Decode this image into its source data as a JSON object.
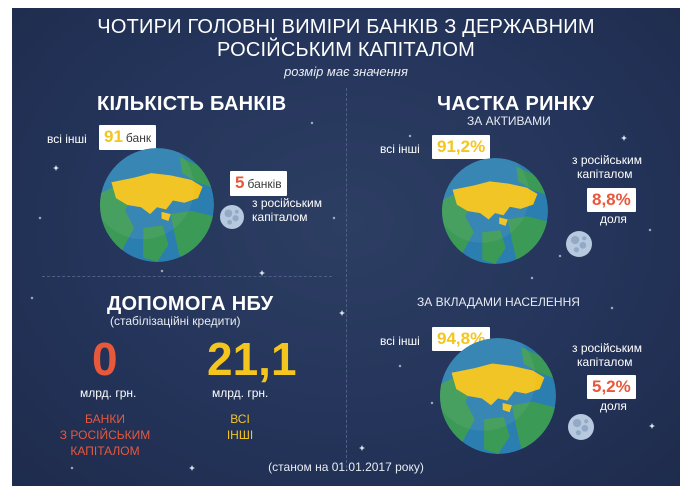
{
  "title": {
    "line1": "ЧОТИРИ ГОЛОВНІ ВИМІРИ БАНКІВ З ДЕРЖАВНИМ",
    "line2": "РОСІЙСЬКИМ КАПІТАЛОМ",
    "subtitle": "розмір має значення"
  },
  "bank_count": {
    "heading": "КІЛЬКІСТЬ БАНКІВ",
    "others_label": "всі інші",
    "others_value": "91",
    "others_unit": "банк",
    "russian_value": "5",
    "russian_unit": "банків",
    "russian_label_1": "з російським",
    "russian_label_2": "капіталом"
  },
  "market_share": {
    "heading": "ЧАСТКА РИНКУ",
    "by_assets_label": "ЗА АКТИВАМИ",
    "assets": {
      "others_label": "всі інші",
      "others_value": "91,2%",
      "russian_label_1": "з російським",
      "russian_label_2": "капіталом",
      "russian_value": "8,8%",
      "russian_unit": "доля"
    },
    "by_deposits_label": "ЗА ВКЛАДАМИ НАСЕЛЕННЯ",
    "deposits": {
      "others_label": "всі інші",
      "others_value": "94,8%",
      "russian_label_1": "з російським",
      "russian_label_2": "капіталом",
      "russian_value": "5,2%",
      "russian_unit": "доля"
    }
  },
  "nbu_help": {
    "heading": "ДОПОМОГА НБУ",
    "subheading": "(стабілізаційні кредити)",
    "russian_value": "0",
    "russian_unit": "млрд. грн.",
    "russian_caption_1": "БАНКИ",
    "russian_caption_2": "З РОСІЙСЬКИМ",
    "russian_caption_3": "КАПІТАЛОМ",
    "others_value": "21,1",
    "others_unit": "млрд. грн.",
    "others_caption_1": "ВСІ",
    "others_caption_2": "ІНШІ"
  },
  "footnote": "(станом на 01.01.2017 року)",
  "colors": {
    "background": "#24345a",
    "yellow": "#f4c51f",
    "orange": "#e8583b",
    "earth_land": "#f2c21a",
    "earth_green": "#3c9a57",
    "earth_ocean": "#2b7fb0",
    "moon": "#b6c9df"
  },
  "icons": [
    "earth-globe-icon",
    "moon-icon",
    "star-icon"
  ]
}
